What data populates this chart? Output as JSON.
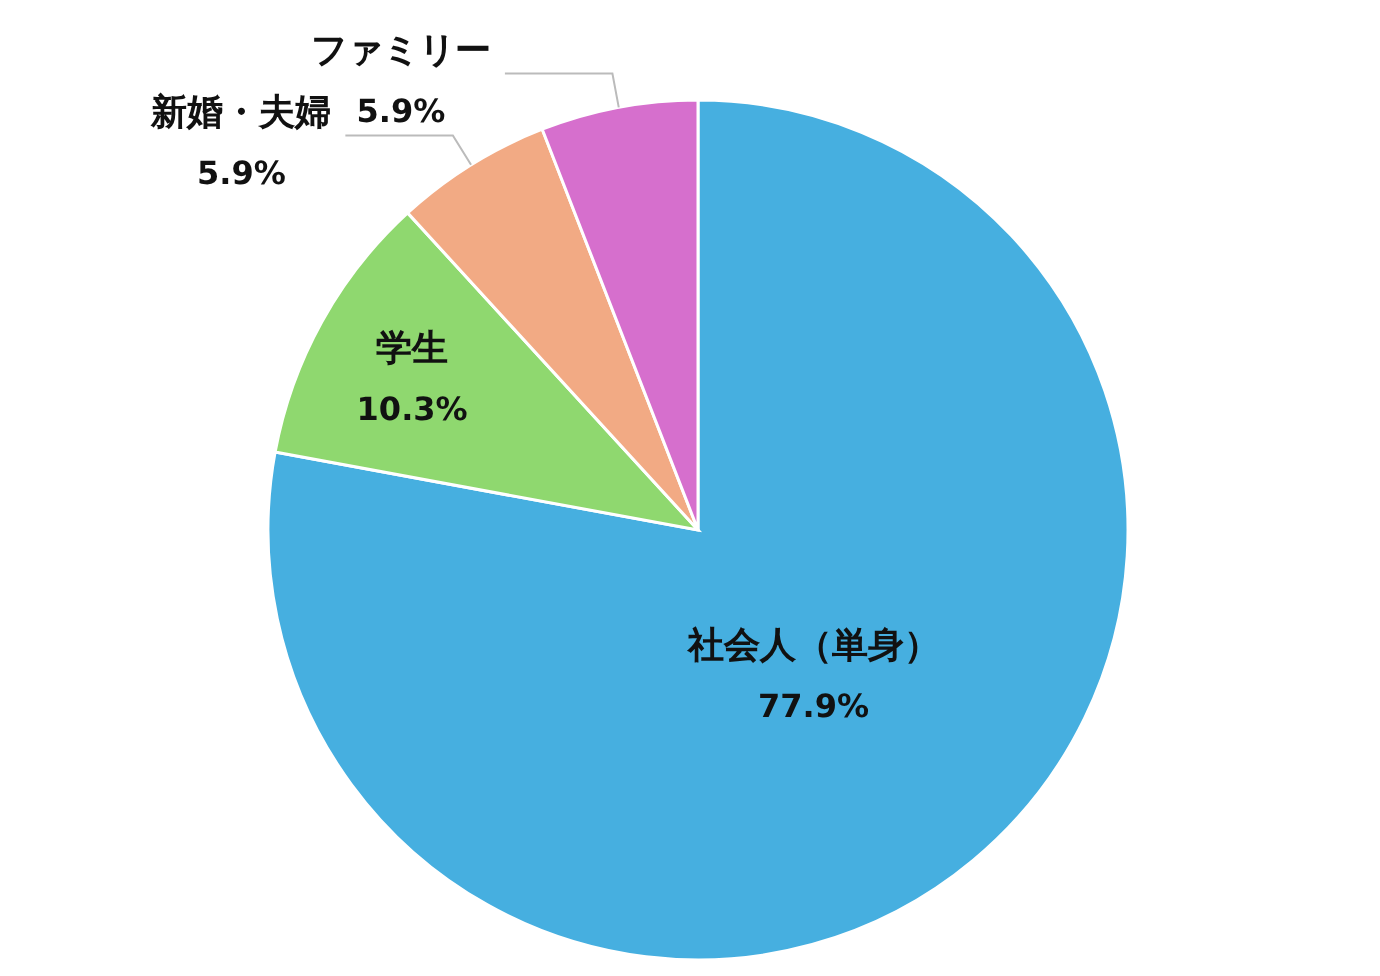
{
  "chart_data": {
    "type": "pie",
    "categories": [
      "社会人（単身）",
      "学生",
      "新婚・夫婦",
      "ファミリー"
    ],
    "values": [
      77.9,
      10.3,
      5.9,
      5.9
    ],
    "colors": [
      "#46afe0",
      "#8fd86f",
      "#f2aa84",
      "#d66fcd"
    ],
    "value_labels": [
      "77.9%",
      "10.3%",
      "5.9%",
      "5.9%"
    ]
  }
}
